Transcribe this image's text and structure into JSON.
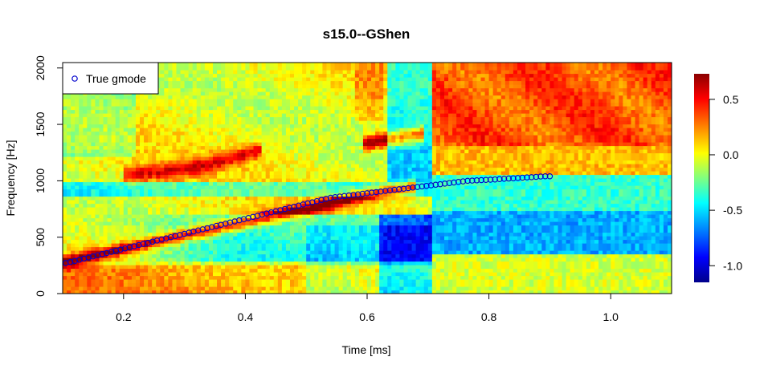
{
  "chart_data": {
    "type": "heatmap",
    "title": "s15.0--GShen",
    "xlabel": "Time [ms]",
    "ylabel": "Frequency [Hz]",
    "xlim": [
      0.1,
      1.1
    ],
    "ylim": [
      0,
      2048
    ],
    "x_ticks": [
      0.2,
      0.4,
      0.6,
      0.8,
      1.0
    ],
    "x_tick_labels": [
      "0.2",
      "0.4",
      "0.6",
      "0.8",
      "1.0"
    ],
    "y_ticks": [
      0,
      500,
      1000,
      1500,
      2000
    ],
    "y_tick_labels": [
      "0",
      "500",
      "1000",
      "1500",
      "2000"
    ],
    "colorbar": {
      "range": [
        -1.15,
        0.73
      ],
      "ticks": [
        0.5,
        0.0,
        -0.5,
        -1.0
      ],
      "tick_labels": [
        "0.5",
        "0.0",
        "-0.5",
        "-1.0"
      ],
      "colors": [
        "#00008b",
        "#0000ff",
        "#0080ff",
        "#00ffff",
        "#80ff80",
        "#ffff00",
        "#ff8000",
        "#ff0000",
        "#8b0000"
      ]
    },
    "legend": {
      "position": "top-left",
      "entries": [
        "True gmode"
      ]
    },
    "series": [
      {
        "name": "True gmode",
        "marker": "open-circle",
        "color": "#0000cd",
        "start_x": 0.105,
        "step_x": 0.0075,
        "y": [
          270,
          280,
          290,
          300,
          310,
          320,
          330,
          340,
          350,
          360,
          370,
          380,
          390,
          400,
          410,
          420,
          430,
          440,
          450,
          460,
          470,
          480,
          490,
          500,
          510,
          520,
          530,
          540,
          550,
          560,
          570,
          580,
          590,
          600,
          610,
          620,
          630,
          640,
          650,
          660,
          670,
          680,
          690,
          700,
          710,
          720,
          730,
          740,
          750,
          760,
          770,
          780,
          790,
          800,
          810,
          820,
          830,
          840,
          850,
          855,
          860,
          865,
          870,
          875,
          880,
          885,
          890,
          895,
          900,
          905,
          910,
          915,
          920,
          925,
          930,
          935,
          940,
          945,
          950,
          955,
          960,
          965,
          970,
          975,
          980,
          985,
          990,
          995,
          1000,
          1002,
          1004,
          1006,
          1008,
          1010,
          1012,
          1015,
          1018,
          1020,
          1022,
          1025,
          1028,
          1030,
          1032,
          1035,
          1038,
          1040,
          1040
        ]
      }
    ],
    "ridges": [
      {
        "label": "main",
        "points": [
          [
            0.1,
            280
          ],
          [
            0.3,
            520
          ],
          [
            0.5,
            750
          ],
          [
            0.6,
            880
          ],
          [
            0.68,
            950
          ]
        ]
      },
      {
        "label": "upper",
        "points": [
          [
            0.2,
            1050
          ],
          [
            0.3,
            1100
          ],
          [
            0.43,
            1280
          ]
        ]
      },
      {
        "label": "high",
        "points": [
          [
            0.59,
            1330
          ],
          [
            0.69,
            1420
          ]
        ]
      }
    ]
  }
}
